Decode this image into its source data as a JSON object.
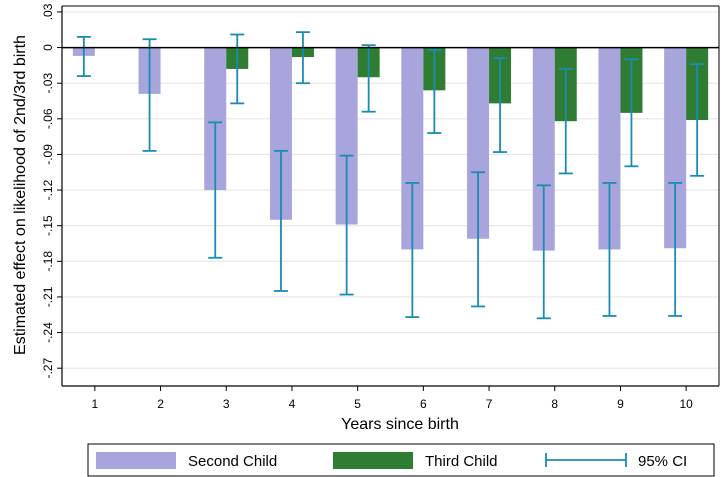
{
  "chart_data": {
    "type": "bar",
    "xlabel": "Years since birth",
    "ylabel": "Estimated effect on likelihood of 2nd/3rd birth",
    "categories": [
      "1",
      "2",
      "3",
      "4",
      "5",
      "6",
      "7",
      "8",
      "9",
      "10"
    ],
    "ylim": [
      -0.285,
      0.035
    ],
    "yticks": [
      ".03",
      "0",
      "-.03",
      "-.06",
      "-.09",
      "-.12",
      "-.15",
      "-.18",
      "-.21",
      "-.24",
      "-.27"
    ],
    "grid": true,
    "legend_position": "bottom",
    "series": [
      {
        "name": "Second Child",
        "color": "#a8a4dc",
        "values": [
          -0.007,
          -0.039,
          -0.12,
          -0.145,
          -0.149,
          -0.17,
          -0.161,
          -0.171,
          -0.17,
          -0.169
        ],
        "ci_low": [
          -0.024,
          -0.087,
          -0.177,
          -0.205,
          -0.208,
          -0.227,
          -0.218,
          -0.228,
          -0.226,
          -0.226
        ],
        "ci_high": [
          0.009,
          0.007,
          -0.063,
          -0.087,
          -0.091,
          -0.114,
          -0.105,
          -0.116,
          -0.114,
          -0.114
        ]
      },
      {
        "name": "Third Child",
        "color": "#2e7d32",
        "values": [
          null,
          null,
          -0.018,
          -0.008,
          -0.025,
          -0.036,
          -0.047,
          -0.062,
          -0.055,
          -0.061
        ],
        "ci_low": [
          null,
          null,
          -0.047,
          -0.03,
          -0.054,
          -0.072,
          -0.088,
          -0.106,
          -0.1,
          -0.108
        ],
        "ci_high": [
          null,
          null,
          0.011,
          0.013,
          0.002,
          -0.002,
          -0.009,
          -0.018,
          -0.01,
          -0.014
        ]
      }
    ],
    "ci_color": "#1a8cb4",
    "legend": [
      {
        "label": "Second Child",
        "swatch": "bar",
        "color": "#a8a4dc"
      },
      {
        "label": "Third Child",
        "swatch": "bar",
        "color": "#2e7d32"
      },
      {
        "label": "95% CI",
        "swatch": "errorbar",
        "color": "#1a8cb4"
      }
    ]
  }
}
